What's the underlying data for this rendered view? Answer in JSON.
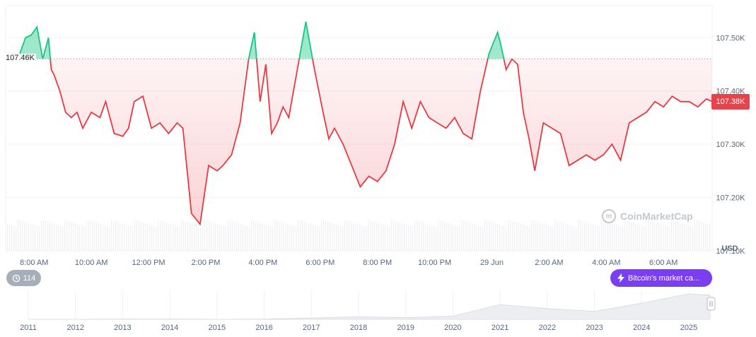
{
  "chart_data": {
    "type": "line",
    "currency": "USD",
    "y_ticks": [
      "107.50K",
      "107.40K",
      "107.30K",
      "107.20K",
      "107.10K"
    ],
    "y_tick_values": [
      107500,
      107400,
      107300,
      107200,
      107100
    ],
    "ylim": [
      107100,
      107560
    ],
    "x_ticks": [
      "8:00 AM",
      "10:00 AM",
      "12:00 PM",
      "2:00 PM",
      "4:00 PM",
      "6:00 PM",
      "8:00 PM",
      "10:00 PM",
      "29 Jun",
      "2:00 AM",
      "4:00 AM",
      "6:00 AM"
    ],
    "x_tick_hours": [
      0.5,
      2.5,
      4.5,
      6.5,
      8.5,
      10.5,
      12.5,
      14.5,
      16.5,
      18.5,
      20.5,
      22.5
    ],
    "x_hours_range": [
      0,
      24.2
    ],
    "open_value": 107460,
    "open_label": "107.46K",
    "current_value": 107380,
    "current_label": "107.38K",
    "series": [
      {
        "name": "Bitcoin",
        "x_hours": [
          0.0,
          0.2,
          0.4,
          0.6,
          0.8,
          1.0,
          1.1,
          1.2,
          1.4,
          1.6,
          1.8,
          2.0,
          2.2,
          2.5,
          2.8,
          3.0,
          3.3,
          3.6,
          3.8,
          4.0,
          4.3,
          4.6,
          4.9,
          5.2,
          5.5,
          5.7,
          6.0,
          6.3,
          6.6,
          6.9,
          7.1,
          7.4,
          7.7,
          8.0,
          8.2,
          8.4,
          8.6,
          8.8,
          9.0,
          9.2,
          9.4,
          9.7,
          10.0,
          10.3,
          10.6,
          10.8,
          11.0,
          11.3,
          11.6,
          11.9,
          12.2,
          12.5,
          12.8,
          13.1,
          13.4,
          13.7,
          14.0,
          14.3,
          14.6,
          14.9,
          15.2,
          15.5,
          15.8,
          16.1,
          16.4,
          16.7,
          16.8,
          17.0,
          17.2,
          17.4,
          17.6,
          17.8,
          18.0,
          18.3,
          18.6,
          18.9,
          19.2,
          19.5,
          19.8,
          20.1,
          20.4,
          20.7,
          21.0,
          21.3,
          21.6,
          21.9,
          22.2,
          22.5,
          22.8,
          23.1,
          23.4,
          23.7,
          24.0,
          24.2
        ],
        "values": [
          107470,
          107500,
          107505,
          107520,
          107460,
          107500,
          107440,
          107430,
          107400,
          107360,
          107350,
          107360,
          107330,
          107360,
          107350,
          107380,
          107320,
          107315,
          107330,
          107380,
          107390,
          107330,
          107340,
          107320,
          107340,
          107330,
          107170,
          107150,
          107260,
          107250,
          107260,
          107280,
          107340,
          107460,
          107510,
          107380,
          107450,
          107320,
          107340,
          107370,
          107350,
          107440,
          107530,
          107440,
          107360,
          107310,
          107330,
          107300,
          107260,
          107220,
          107240,
          107230,
          107250,
          107300,
          107380,
          107330,
          107380,
          107350,
          107340,
          107330,
          107350,
          107320,
          107310,
          107400,
          107470,
          107510,
          107490,
          107440,
          107460,
          107450,
          107360,
          107310,
          107250,
          107340,
          107330,
          107320,
          107260,
          107270,
          107280,
          107270,
          107280,
          107300,
          107270,
          107340,
          107350,
          107360,
          107380,
          107370,
          107390,
          107380,
          107380,
          107370,
          107385,
          107380
        ]
      }
    ],
    "mini_timeline": {
      "labels": [
        "2011",
        "2012",
        "2013",
        "2014",
        "2015",
        "2016",
        "2017",
        "2018",
        "2019",
        "2020",
        "2021",
        "2022",
        "2023",
        "2024",
        "2025"
      ],
      "relative_values": [
        0.0,
        0.0,
        0.01,
        0.01,
        0.0,
        0.01,
        0.05,
        0.1,
        0.06,
        0.12,
        0.55,
        0.4,
        0.3,
        0.6,
        0.95
      ]
    },
    "colors": {
      "up": "#16c784",
      "down": "#ea3943",
      "accent": "#7b3ff2",
      "axis_text": "#58667e"
    }
  },
  "ui": {
    "watermark": "CoinMarketCap",
    "badge_count": "114",
    "market_cap_button": "Bitcoin's market ca..."
  }
}
